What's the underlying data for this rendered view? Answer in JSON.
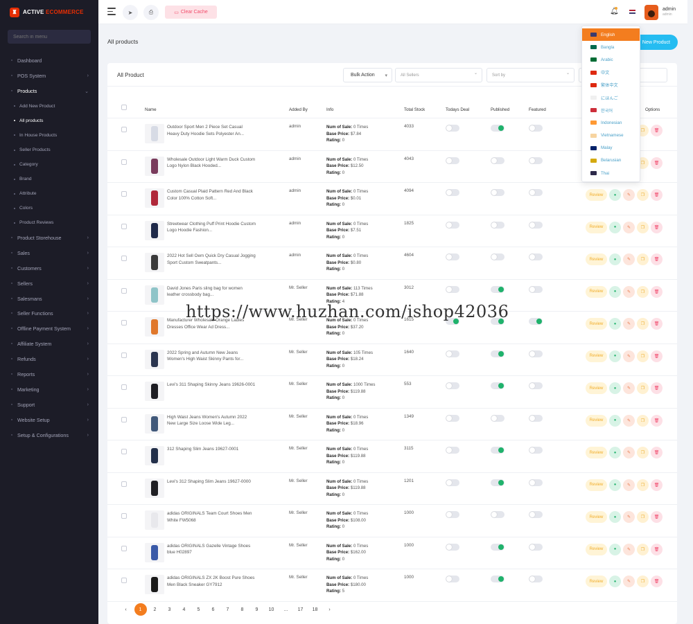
{
  "brand": {
    "prefix": "ACTIVE",
    "suffix": "ECOMMERCE"
  },
  "sidebar": {
    "search_placeholder": "Search in menu",
    "items": [
      {
        "label": "Dashboard",
        "icon": "dashboard-icon",
        "chevron": false
      },
      {
        "label": "POS System",
        "icon": "pos-icon",
        "chevron": true
      },
      {
        "label": "Products",
        "icon": "products-icon",
        "chevron": true,
        "open": true
      },
      {
        "label": "Product Storehouse",
        "icon": "storehouse-icon",
        "chevron": true
      },
      {
        "label": "Sales",
        "icon": "sales-icon",
        "chevron": true
      },
      {
        "label": "Customers",
        "icon": "customers-icon",
        "chevron": true
      },
      {
        "label": "Sellers",
        "icon": "sellers-icon",
        "chevron": true
      },
      {
        "label": "Salesmans",
        "icon": "salesmans-icon",
        "chevron": true
      },
      {
        "label": "Seller Functions",
        "icon": "seller-functions-icon",
        "chevron": true
      },
      {
        "label": "Offline Payment System",
        "icon": "offline-payment-icon",
        "chevron": true
      },
      {
        "label": "Affiliate System",
        "icon": "affiliate-icon",
        "chevron": true
      },
      {
        "label": "Refunds",
        "icon": "refunds-icon",
        "chevron": true
      },
      {
        "label": "Reports",
        "icon": "reports-icon",
        "chevron": true
      },
      {
        "label": "Marketing",
        "icon": "marketing-icon",
        "chevron": true
      },
      {
        "label": "Support",
        "icon": "support-icon",
        "chevron": true
      },
      {
        "label": "Website Setup",
        "icon": "website-setup-icon",
        "chevron": true
      },
      {
        "label": "Setup & Configurations",
        "icon": "settings-icon",
        "chevron": true
      }
    ],
    "products_sub": [
      "Add New Product",
      "All products",
      "In House Products",
      "Seller Products",
      "Category",
      "Brand",
      "Attribute",
      "Colors",
      "Product Reviews"
    ],
    "active_sub": "All products"
  },
  "header": {
    "clear_cache": "Clear Cache",
    "admin_name": "admin",
    "admin_role": "admin"
  },
  "page": {
    "title": "All products",
    "add_button": "Add New Product",
    "add_button_visible": "New Product"
  },
  "card": {
    "title": "All Product",
    "bulk_action": "Bulk Action",
    "sellers_placeholder": "All Sellers",
    "sort_placeholder": "Sort by"
  },
  "table": {
    "headers": {
      "name": "Name",
      "added_by": "Added By",
      "info": "Info",
      "stock": "Total Stock",
      "deal": "Todays Deal",
      "published": "Published",
      "featured": "Featured",
      "options": "Options"
    },
    "info_labels": {
      "sales": "Num of Sale:",
      "price": "Base Price:",
      "rating": "Rating:"
    },
    "review_label": "Review",
    "rows": [
      {
        "name": "Outdoor Sport Men 2 Piece Set Casual Heavy Duty Hoodie Sets Polyester An...",
        "added_by": "admin",
        "sales": "0 Times",
        "price": "$7.84",
        "rating": "0",
        "stock": "4033",
        "deal": false,
        "published": true,
        "featured": false,
        "thumb": "#d7dbe5"
      },
      {
        "name": "Wholesale Outdoor Light Warm Duck Custom Logo Nylon Black Hooded...",
        "added_by": "admin",
        "sales": "0 Times",
        "price": "$12.50",
        "rating": "0",
        "stock": "4043",
        "deal": false,
        "published": false,
        "featured": false,
        "thumb": "#7a3b5c"
      },
      {
        "name": "Custom Casual Plaid Pattern Red And Black Color 100% Cotton Soft...",
        "added_by": "admin",
        "sales": "0 Times",
        "price": "$0.01",
        "rating": "0",
        "stock": "4094",
        "deal": false,
        "published": false,
        "featured": false,
        "thumb": "#b0283a"
      },
      {
        "name": "Streetwear Clothing Puff Print Hoodie Custom Logo Hoodie Fashion...",
        "added_by": "admin",
        "sales": "0 Times",
        "price": "$7.51",
        "rating": "0",
        "stock": "1825",
        "deal": false,
        "published": false,
        "featured": false,
        "thumb": "#1f2a4a"
      },
      {
        "name": "2022 Hot Sell Oem Quick Dry Casual Jogging Sport Custom Sweatpants...",
        "added_by": "admin",
        "sales": "0 Times",
        "price": "$0.80",
        "rating": "0",
        "stock": "4604",
        "deal": false,
        "published": false,
        "featured": false,
        "thumb": "#3b3b3b"
      },
      {
        "name": "David Jones Paris sling bag for women leather crossbody bag...",
        "added_by": "Mr. Seller",
        "sales": "113 Times",
        "price": "$71.88",
        "rating": "4",
        "stock": "3012",
        "deal": false,
        "published": true,
        "featured": false,
        "thumb": "#8fc4c8"
      },
      {
        "name": "Manufacturer Wholesale Orange Ladies Dresses Office Wear Ad Dress...",
        "added_by": "Mr. Seller",
        "sales": "0 Times",
        "price": "$37.20",
        "rating": "0",
        "stock": "1615",
        "deal": true,
        "published": true,
        "featured": true,
        "thumb": "#e0782c"
      },
      {
        "name": "2022 Spring and Autumn New Jeans Women's High Waist Skinny Pants for...",
        "added_by": "Mr. Seller",
        "sales": "105 Times",
        "price": "$18.24",
        "rating": "0",
        "stock": "1640",
        "deal": false,
        "published": true,
        "featured": false,
        "thumb": "#2b3550"
      },
      {
        "name": "Levi's 311 Shaping Skinny Jeans 19626-0001",
        "added_by": "Mr. Seller",
        "sales": "1000 Times",
        "price": "$119.88",
        "rating": "0",
        "stock": "553",
        "deal": false,
        "published": true,
        "featured": false,
        "thumb": "#1e1e24"
      },
      {
        "name": "High Waist Jeans Women's Autumn 2022 New Large Size Loose Wide Leg...",
        "added_by": "Mr. Seller",
        "sales": "0 Times",
        "price": "$18.96",
        "rating": "0",
        "stock": "1349",
        "deal": false,
        "published": false,
        "featured": false,
        "thumb": "#41597a"
      },
      {
        "name": "312 Shaping Slim Jeans 19627-0001",
        "added_by": "Mr. Seller",
        "sales": "0 Times",
        "price": "$119.88",
        "rating": "0",
        "stock": "3115",
        "deal": false,
        "published": true,
        "featured": false,
        "thumb": "#23304a"
      },
      {
        "name": "Levi's 312 Shaping Slim Jeans 19627-0000",
        "added_by": "Mr. Seller",
        "sales": "0 Times",
        "price": "$119.88",
        "rating": "0",
        "stock": "1201",
        "deal": false,
        "published": true,
        "featured": false,
        "thumb": "#202024"
      },
      {
        "name": "adidas ORIGINALS Team Court Shoes Men White FW5068",
        "added_by": "Mr. Seller",
        "sales": "0 Times",
        "price": "$108.00",
        "rating": "0",
        "stock": "1000",
        "deal": false,
        "published": false,
        "featured": false,
        "thumb": "#e8e8ec"
      },
      {
        "name": "adidas ORIGINALS Gazelle Vintage Shoes blue H02897",
        "added_by": "Mr. Seller",
        "sales": "0 Times",
        "price": "$162.00",
        "rating": "0",
        "stock": "1000",
        "deal": false,
        "published": true,
        "featured": false,
        "thumb": "#3a5aa8"
      },
      {
        "name": "adidas ORIGINALS ZX 2K Boost Pure Shoes Men Black Sneaker GY7912",
        "added_by": "Mr. Seller",
        "sales": "0 Times",
        "price": "$180.00",
        "rating": "5",
        "stock": "1000",
        "deal": false,
        "published": true,
        "featured": false,
        "thumb": "#1a1a1a"
      }
    ]
  },
  "pagination": {
    "prev": "‹",
    "next": "›",
    "pages": [
      "1",
      "2",
      "3",
      "4",
      "5",
      "6",
      "7",
      "8",
      "9",
      "10",
      "...",
      "17",
      "18"
    ],
    "current": "1"
  },
  "languages": [
    {
      "label": "English",
      "active": true,
      "flag": "#3c3b6e"
    },
    {
      "label": "Bangla",
      "active": false,
      "flag": "#006a4e"
    },
    {
      "label": "Arabic",
      "active": false,
      "flag": "#006c35"
    },
    {
      "label": "中文",
      "active": false,
      "flag": "#de2910"
    },
    {
      "label": "繁体中文",
      "active": false,
      "flag": "#de2910"
    },
    {
      "label": "にほんご",
      "active": false,
      "flag": "#f0f0f0"
    },
    {
      "label": "한국어",
      "active": false,
      "flag": "#cd2e3a"
    },
    {
      "label": "Indonesian",
      "active": false,
      "flag": "#ff9933"
    },
    {
      "label": "Vietnamese",
      "active": false,
      "flag": "#f7d4a0"
    },
    {
      "label": "Malay",
      "active": false,
      "flag": "#012169"
    },
    {
      "label": "Belarusian",
      "active": false,
      "flag": "#d4a90f"
    },
    {
      "label": "Thai",
      "active": false,
      "flag": "#2d2a4a"
    }
  ],
  "watermark": "https://www.huzhan.com/ishop42036",
  "colors": {
    "accent": "#f37d1f",
    "sidebar_bg": "#1c1c27",
    "brand_red": "#e62e04",
    "info_blue": "#25bcf1",
    "toggle_on": "#1fb26b"
  }
}
